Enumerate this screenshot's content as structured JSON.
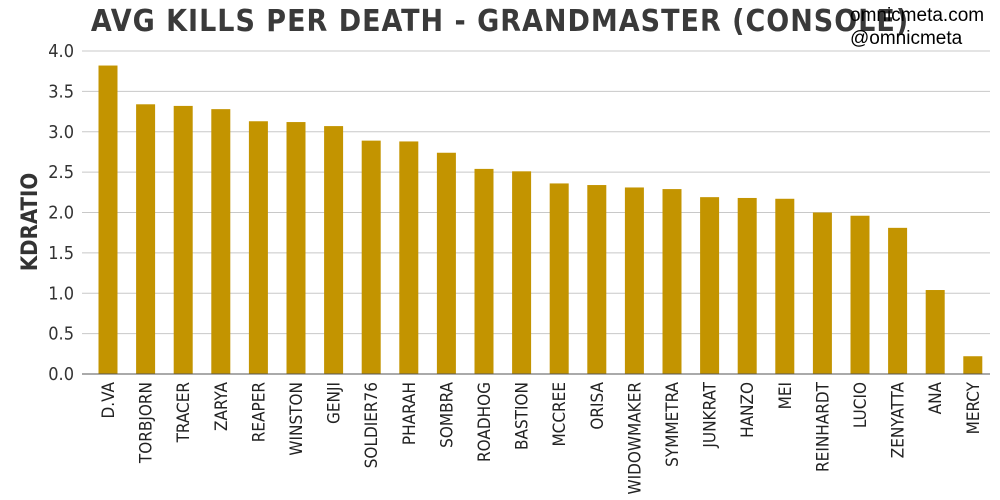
{
  "watermark": {
    "line1": "omnicmeta.com",
    "line2": "@omnicmeta"
  },
  "chart_data": {
    "type": "bar",
    "title": "AVG KILLS PER DEATH - GRANDMASTER (CONSOLE)",
    "xlabel": "",
    "ylabel": "KDRATIO",
    "ylim": [
      0,
      4.0
    ],
    "yticks": [
      "0.0",
      "0.5",
      "1.0",
      "1.5",
      "2.0",
      "2.5",
      "3.0",
      "3.5",
      "4.0"
    ],
    "grid": true,
    "bar_color": "#c39400",
    "categories": [
      "D.VA",
      "TORBJORN",
      "TRACER",
      "ZARYA",
      "REAPER",
      "WINSTON",
      "GENJI",
      "SOLDIER76",
      "PHARAH",
      "SOMBRA",
      "ROADHOG",
      "BASTION",
      "MCCREE",
      "ORISA",
      "WIDOWMAKER",
      "SYMMETRA",
      "JUNKRAT",
      "HANZO",
      "MEI",
      "REINHARDT",
      "LUCIO",
      "ZENYATTA",
      "ANA",
      "MERCY"
    ],
    "values": [
      3.82,
      3.34,
      3.32,
      3.28,
      3.13,
      3.12,
      3.07,
      2.89,
      2.88,
      2.74,
      2.54,
      2.51,
      2.36,
      2.34,
      2.31,
      2.29,
      2.19,
      2.18,
      2.17,
      2.0,
      1.96,
      1.81,
      1.04,
      0.22
    ]
  }
}
